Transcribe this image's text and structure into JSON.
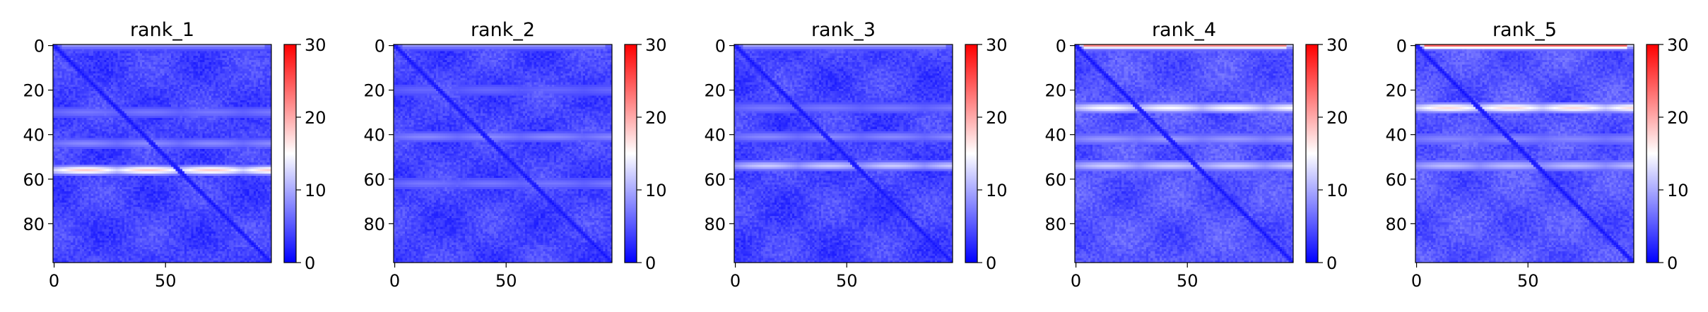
{
  "chart_data": [
    {
      "type": "heatmap",
      "title": "rank_1",
      "matrix_size": 98,
      "xticks": [
        0,
        50
      ],
      "yticks": [
        0,
        20,
        40,
        60,
        80
      ],
      "colorbar": {
        "min": 0,
        "max": 30,
        "ticks": [
          0,
          10,
          20,
          30
        ],
        "colormap": "bwr"
      },
      "base_value": 4,
      "diagonal_value": 1,
      "high_rows": [
        {
          "row": 56,
          "value": 18
        },
        {
          "row": 44,
          "value": 8
        },
        {
          "row": 30,
          "value": 7
        },
        {
          "row": 0,
          "value": 9
        }
      ]
    },
    {
      "type": "heatmap",
      "title": "rank_2",
      "matrix_size": 98,
      "xticks": [
        0,
        50
      ],
      "yticks": [
        0,
        20,
        40,
        60,
        80
      ],
      "colorbar": {
        "min": 0,
        "max": 30,
        "ticks": [
          0,
          10,
          20,
          30
        ],
        "colormap": "bwr"
      },
      "base_value": 4,
      "diagonal_value": 1,
      "high_rows": [
        {
          "row": 41,
          "value": 8
        },
        {
          "row": 62,
          "value": 7
        },
        {
          "row": 20,
          "value": 6
        },
        {
          "row": 0,
          "value": 9
        }
      ]
    },
    {
      "type": "heatmap",
      "title": "rank_3",
      "matrix_size": 98,
      "xticks": [
        0,
        50
      ],
      "yticks": [
        0,
        20,
        40,
        60,
        80
      ],
      "colorbar": {
        "min": 0,
        "max": 30,
        "ticks": [
          0,
          10,
          20,
          30
        ],
        "colormap": "bwr"
      },
      "base_value": 4,
      "diagonal_value": 1,
      "high_rows": [
        {
          "row": 54,
          "value": 12
        },
        {
          "row": 41,
          "value": 8
        },
        {
          "row": 28,
          "value": 7
        },
        {
          "row": 0,
          "value": 10
        }
      ]
    },
    {
      "type": "heatmap",
      "title": "rank_4",
      "matrix_size": 98,
      "xticks": [
        0,
        50
      ],
      "yticks": [
        0,
        20,
        40,
        60,
        80
      ],
      "colorbar": {
        "min": 0,
        "max": 30,
        "ticks": [
          0,
          10,
          20,
          30
        ],
        "colormap": "bwr"
      },
      "base_value": 5,
      "diagonal_value": 1,
      "high_rows": [
        {
          "row": 28,
          "value": 15
        },
        {
          "row": 54,
          "value": 12
        },
        {
          "row": 42,
          "value": 9
        },
        {
          "row": 0,
          "value": 22
        }
      ]
    },
    {
      "type": "heatmap",
      "title": "rank_5",
      "matrix_size": 98,
      "xticks": [
        0,
        50
      ],
      "yticks": [
        0,
        20,
        40,
        60,
        80
      ],
      "colorbar": {
        "min": 0,
        "max": 30,
        "ticks": [
          0,
          10,
          20,
          30
        ],
        "colormap": "bwr"
      },
      "base_value": 5,
      "diagonal_value": 1,
      "high_rows": [
        {
          "row": 28,
          "value": 17
        },
        {
          "row": 54,
          "value": 11
        },
        {
          "row": 42,
          "value": 8
        },
        {
          "row": 0,
          "value": 24
        }
      ]
    }
  ]
}
